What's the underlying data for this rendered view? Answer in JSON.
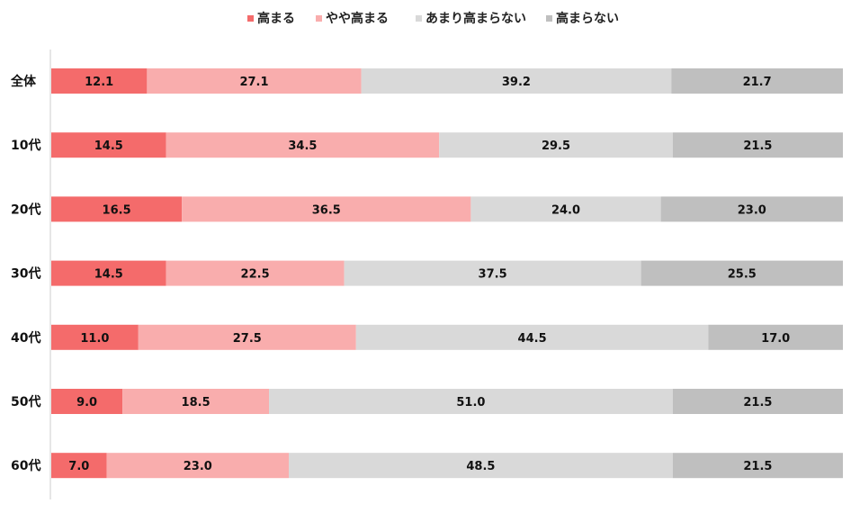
{
  "chart_data": {
    "type": "bar",
    "orientation": "horizontal",
    "stacked": "100%",
    "categories": [
      "全体",
      "10代",
      "20代",
      "30代",
      "40代",
      "50代",
      "60代"
    ],
    "series": [
      {
        "name": "高まる",
        "color": "#f46b6b",
        "values": [
          12.1,
          14.5,
          16.5,
          14.5,
          11.0,
          9.0,
          7.0
        ]
      },
      {
        "name": "やや高まる",
        "color": "#f9adad",
        "values": [
          27.1,
          34.5,
          36.5,
          22.5,
          27.5,
          18.5,
          23.0
        ]
      },
      {
        "name": "あまり高まらない",
        "color": "#d9d9d9",
        "values": [
          39.2,
          29.5,
          24.0,
          37.5,
          44.5,
          51.0,
          48.5
        ]
      },
      {
        "name": "高まらない",
        "color": "#bfbfbf",
        "values": [
          21.7,
          21.5,
          23.0,
          25.5,
          17.0,
          21.5,
          21.5
        ]
      }
    ],
    "value_labels": [
      [
        "12.1",
        "14.5",
        "16.5",
        "14.5",
        "11.0",
        "9.0",
        "7.0"
      ],
      [
        "27.1",
        "34.5",
        "36.5",
        "22.5",
        "27.5",
        "18.5",
        "23.0"
      ],
      [
        "39.2",
        "29.5",
        "24.0",
        "37.5",
        "44.5",
        "51.0",
        "48.5"
      ],
      [
        "21.7",
        "21.5",
        "23.0",
        "25.5",
        "17.0",
        "21.5",
        "21.5"
      ]
    ],
    "xlim": [
      0,
      100
    ],
    "legend_position": "top-center",
    "grid": false
  }
}
